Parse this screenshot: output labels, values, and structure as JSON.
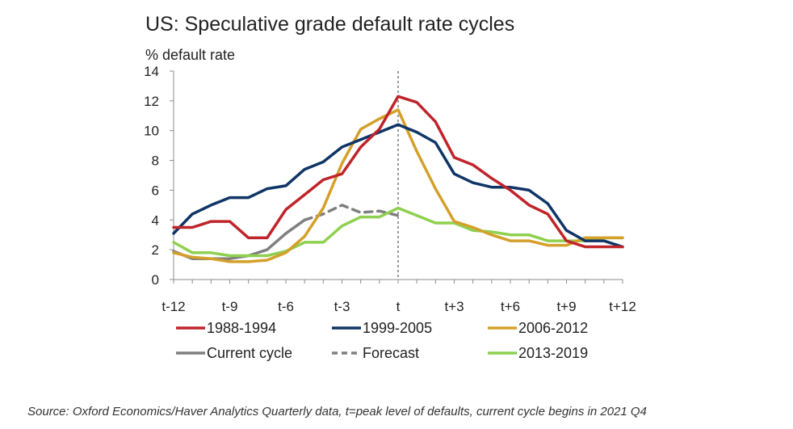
{
  "chart_data": {
    "type": "line",
    "title": "US: Speculative grade default rate cycles",
    "ylabel": "% default rate",
    "xlabel": "",
    "ylim": [
      0,
      14
    ],
    "yticks": [
      0,
      2,
      4,
      6,
      8,
      10,
      12,
      14
    ],
    "xlim": [
      -12,
      12
    ],
    "x_ticks": [
      {
        "x": -12,
        "label": "t-12"
      },
      {
        "x": -9,
        "label": "t-9"
      },
      {
        "x": -6,
        "label": "t-6"
      },
      {
        "x": -3,
        "label": "t-3"
      },
      {
        "x": 0,
        "label": "t"
      },
      {
        "x": 3,
        "label": "t+3"
      },
      {
        "x": 6,
        "label": "t+6"
      },
      {
        "x": 9,
        "label": "t+9"
      },
      {
        "x": 12,
        "label": "t+12"
      }
    ],
    "vertical_reference_line_x": 0,
    "grid": false,
    "legend_position": "bottom",
    "series": [
      {
        "name": "1988-1994",
        "color": "#c0242b",
        "dash": "solid",
        "x": [
          -12,
          -11,
          -10,
          -9,
          -8,
          -7,
          -6,
          -5,
          -4,
          -3,
          -2,
          -1,
          0,
          1,
          2,
          3,
          4,
          5,
          6,
          7,
          8,
          9,
          10,
          11,
          12
        ],
        "values": [
          3.5,
          3.5,
          3.9,
          3.9,
          2.8,
          2.8,
          4.7,
          5.7,
          6.7,
          7.1,
          8.9,
          10.1,
          12.3,
          11.9,
          10.6,
          8.2,
          7.7,
          6.8,
          6.0,
          5.0,
          4.4,
          2.6,
          2.2,
          2.2,
          2.2
        ]
      },
      {
        "name": "1999-2005",
        "color": "#0f3566",
        "dash": "solid",
        "x": [
          -12,
          -11,
          -10,
          -9,
          -8,
          -7,
          -6,
          -5,
          -4,
          -3,
          -2,
          -1,
          0,
          1,
          2,
          3,
          4,
          5,
          6,
          7,
          8,
          9,
          10,
          11,
          12
        ],
        "values": [
          3.1,
          4.4,
          5.0,
          5.5,
          5.5,
          6.1,
          6.3,
          7.4,
          7.9,
          8.9,
          9.4,
          9.9,
          10.4,
          9.9,
          9.2,
          7.1,
          6.5,
          6.2,
          6.2,
          6.0,
          5.1,
          3.3,
          2.6,
          2.6,
          2.2
        ]
      },
      {
        "name": "2006-2012",
        "color": "#d4a02a",
        "dash": "solid",
        "x": [
          -12,
          -11,
          -10,
          -9,
          -8,
          -7,
          -6,
          -5,
          -4,
          -3,
          -2,
          -1,
          0,
          1,
          2,
          3,
          4,
          5,
          6,
          7,
          8,
          9,
          10,
          11,
          12
        ],
        "values": [
          1.8,
          1.5,
          1.4,
          1.2,
          1.2,
          1.3,
          1.8,
          2.9,
          4.8,
          7.8,
          10.1,
          10.8,
          11.4,
          8.6,
          6.1,
          3.9,
          3.5,
          3.0,
          2.6,
          2.6,
          2.3,
          2.3,
          2.8,
          2.8,
          2.8
        ]
      },
      {
        "name": "Current cycle",
        "color": "#7f7f7f",
        "dash": "solid",
        "x": [
          -12,
          -11,
          -10,
          -9,
          -8,
          -7,
          -6,
          -5
        ],
        "values": [
          1.9,
          1.4,
          1.4,
          1.4,
          1.6,
          2.0,
          3.1,
          4.0
        ]
      },
      {
        "name": "Forecast",
        "color": "#7f7f7f",
        "dash": "dashed",
        "x": [
          -5,
          -4,
          -3,
          -2,
          -1,
          0
        ],
        "values": [
          4.0,
          4.4,
          5.0,
          4.5,
          4.6,
          4.3
        ]
      },
      {
        "name": "2013-2019",
        "color": "#8ed04f",
        "dash": "solid",
        "x": [
          -12,
          -11,
          -10,
          -9,
          -8,
          -7,
          -6,
          -5,
          -4,
          -3,
          -2,
          -1,
          0,
          1,
          2,
          3,
          4,
          5,
          6,
          7,
          8,
          9,
          10,
          11,
          12
        ],
        "values": [
          2.5,
          1.8,
          1.8,
          1.6,
          1.6,
          1.6,
          1.9,
          2.5,
          2.5,
          3.6,
          4.2,
          4.2,
          4.8,
          4.3,
          3.8,
          3.8,
          3.3,
          3.2,
          3.0,
          3.0,
          2.6,
          2.6,
          2.6,
          2.8,
          2.8
        ]
      }
    ],
    "source_note": "Source: Oxford Economics/Haver Analytics  Quarterly data, t=peak level of defaults, current cycle begins in 2021 Q4"
  }
}
